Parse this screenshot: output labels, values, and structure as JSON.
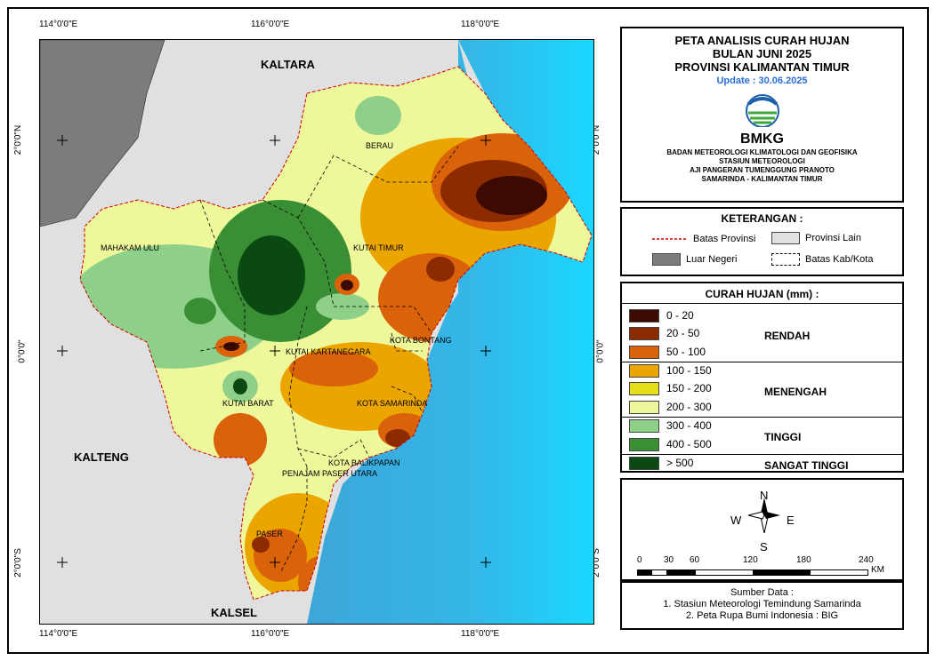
{
  "map": {
    "coords": {
      "top": [
        "114°0'0\"E",
        "116°0'0\"E",
        "118°0'0\"E"
      ],
      "bottom": [
        "114°0'0\"E",
        "116°0'0\"E",
        "118°0'0\"E"
      ],
      "left": [
        "2°0'0\"N",
        "0°0'0\"",
        "2°0'0\"S"
      ],
      "right": [
        "2°0'0\"N",
        "0°0'0\"",
        "2°0'0\"S"
      ]
    },
    "regions": {
      "kaltara": "KALTARA",
      "kalteng": "KALTENG",
      "kalsel": "KALSEL",
      "berau": "BERAU",
      "mahakam_ulu": "MAHAKAM ULU",
      "kutai_timur": "KUTAI TIMUR",
      "kota_bontang": "KOTA BONTANG",
      "kutai_kartanegara": "KUTAI KARTANEGARA",
      "kutai_barat": "KUTAI BARAT",
      "kota_samarinda": "KOTA SAMARINDA",
      "kota_balikpapan": "KOTA BALIKPAPAN",
      "penajam_paser_utara": "PENAJAM PASER UTARA",
      "paser": "PASER"
    }
  },
  "title": {
    "line1": "PETA ANALISIS CURAH HUJAN",
    "line2": "BULAN JUNI 2025",
    "line3": "PROVINSI KALIMANTAN TIMUR",
    "update": "Update : 30.06.2025",
    "logo_text": "BMKG",
    "agency1": "BADAN METEOROLOGI KLIMATOLOGI DAN GEOFISIKA",
    "agency2": "STASIUN METEOROLOGI",
    "agency3": "AJI PANGERAN TUMENGGUNG PRANOTO",
    "agency4": "SAMARINDA - KALIMANTAN TIMUR"
  },
  "legend": {
    "heading": "KETERANGAN :",
    "batas_provinsi": "Batas Provinsi",
    "provinsi_lain": "Provinsi Lain",
    "luar_negeri": "Luar Negeri",
    "batas_kab": "Batas Kab/Kota"
  },
  "rainfall": {
    "heading": "CURAH HUJAN (mm) :",
    "classes": [
      {
        "label": "0 - 20",
        "color": "#3b0a00"
      },
      {
        "label": "20 - 50",
        "color": "#8c2a00"
      },
      {
        "label": "50 - 100",
        "color": "#d9620a"
      },
      {
        "label": "100 - 150",
        "color": "#eba500"
      },
      {
        "label": "150  - 200",
        "color": "#e6de1a"
      },
      {
        "label": "200 - 300",
        "color": "#eef79a"
      },
      {
        "label": "300 - 400",
        "color": "#8ed08a"
      },
      {
        "label": "400 - 500",
        "color": "#3a8f35"
      },
      {
        "label": "> 500",
        "color": "#0a4a12"
      }
    ],
    "categories": {
      "rendah": "RENDAH",
      "menengah": "MENENGAH",
      "tinggi": "TINGGI",
      "sangat_tinggi": "SANGAT TINGGI"
    }
  },
  "scale": {
    "north": "N",
    "south": "S",
    "east": "E",
    "west": "W",
    "ticks": [
      "0",
      "30",
      "60",
      "120",
      "180",
      "240"
    ],
    "unit": "KM"
  },
  "source": {
    "heading": "Sumber Data :",
    "line1": "1. Stasiun Meteorologi Temindung Samarinda",
    "line2": "2. Peta Rupa Bumi Indonesia : BIG"
  }
}
